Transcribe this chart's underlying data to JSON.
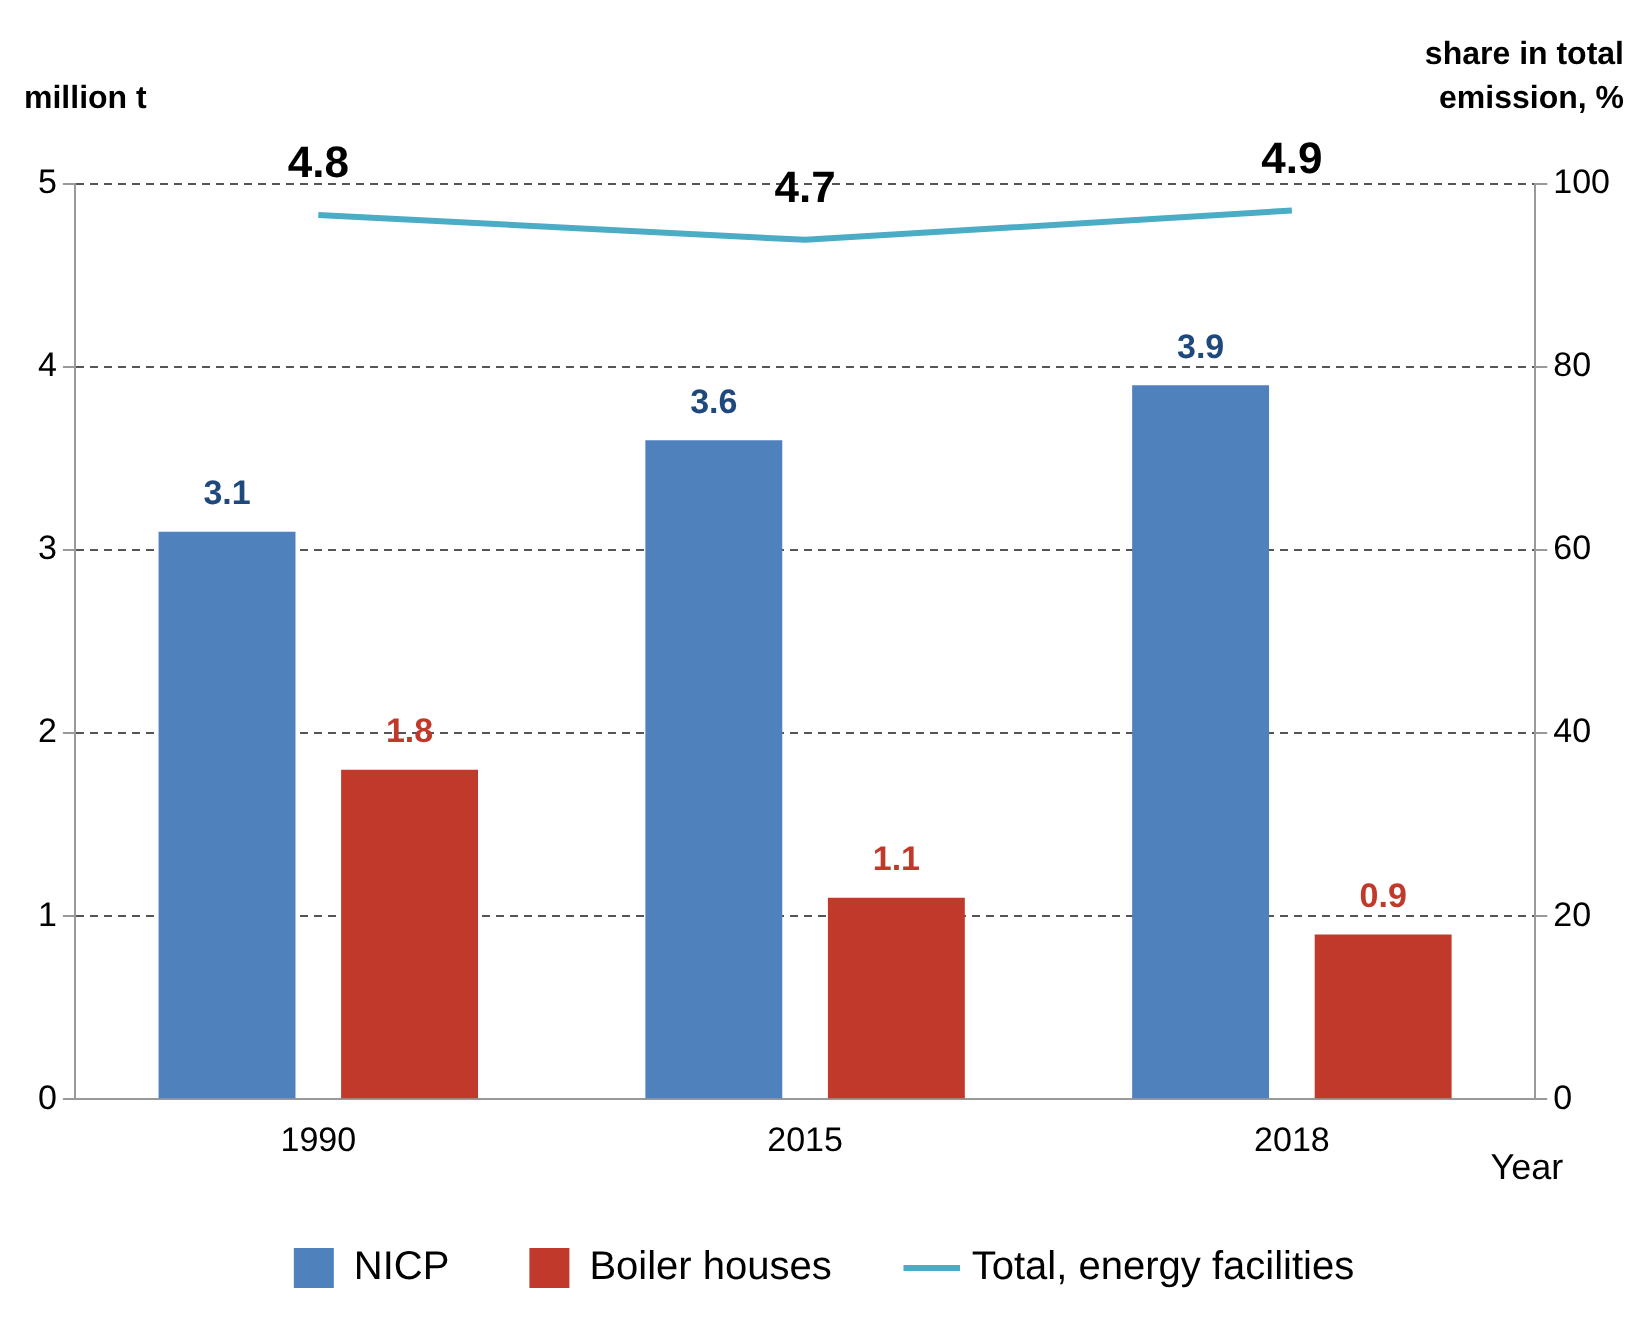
{
  "chart_data": {
    "type": "bar",
    "categories": [
      "1990",
      "2015",
      "2018"
    ],
    "series": [
      {
        "name": "NICP",
        "color": "#4f81bd",
        "values": [
          3.1,
          3.6,
          3.9
        ]
      },
      {
        "name": "Boiler houses",
        "color": "#c0392b",
        "values": [
          1.8,
          1.1,
          0.9
        ]
      },
      {
        "name": "Total, energy facilities",
        "type": "line",
        "axis": "y2",
        "color": "#4bacc6",
        "values": [
          96.6,
          93.9,
          97.1
        ],
        "value_labels": [
          null,
          null,
          null
        ]
      }
    ],
    "annotations": [
      "4.8",
      "4.7",
      "4.9"
    ],
    "data_labels": true,
    "ylabel": "million t",
    "y2label": "share in total emission, %",
    "xlabel": "Year",
    "ylim": [
      0,
      5
    ],
    "yticks": [
      0,
      1,
      2,
      3,
      4,
      5
    ],
    "y2lim": [
      0,
      100
    ],
    "y2ticks": [
      0,
      20,
      40,
      60,
      80,
      100
    ],
    "grid": "y",
    "legend": "bottom",
    "marker": "none",
    "line_style": "solid"
  }
}
